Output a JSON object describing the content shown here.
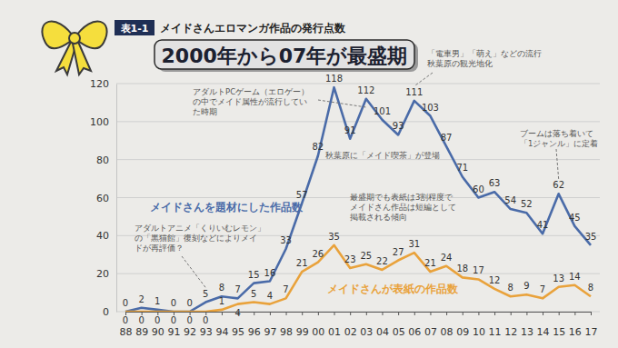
{
  "chart_data": {
    "type": "line",
    "figure_label": "表1-1",
    "title": "メイドさんエロマンガ作品の発行点数",
    "subtitle": "2000年から07年が最盛期",
    "categories": [
      "88",
      "89",
      "90",
      "91",
      "92",
      "93",
      "94",
      "95",
      "96",
      "97",
      "98",
      "99",
      "00",
      "01",
      "02",
      "03",
      "04",
      "05",
      "06",
      "07",
      "08",
      "09",
      "10",
      "11",
      "12",
      "13",
      "14",
      "15",
      "16",
      "17"
    ],
    "series": [
      {
        "name": "メイドさんを題材にした作品数",
        "color": "#4a6ba8",
        "values": [
          0,
          2,
          1,
          0,
          0,
          5,
          8,
          7,
          15,
          16,
          33,
          57,
          82,
          118,
          91,
          112,
          101,
          93,
          111,
          103,
          87,
          71,
          60,
          63,
          54,
          52,
          41,
          62,
          45,
          35
        ]
      },
      {
        "name": "メイドさんが表紙の作品数",
        "color": "#e9a23b",
        "values": [
          0,
          0,
          0,
          0,
          0,
          0,
          1,
          4,
          5,
          4,
          7,
          21,
          26,
          35,
          23,
          25,
          22,
          27,
          31,
          21,
          24,
          18,
          17,
          12,
          8,
          9,
          7,
          13,
          14,
          8
        ]
      }
    ],
    "ylim": [
      0,
      120
    ],
    "yticks": [
      0,
      20,
      40,
      60,
      80,
      100,
      120
    ],
    "grid": true,
    "data_labels": true,
    "annotations": [
      {
        "text": [
          "アダルトPCゲーム（エロゲー）",
          "の中でメイド属性が流行してい",
          "た時期"
        ]
      },
      {
        "text": [
          "秋葉原に「メイド喫茶」が登場"
        ]
      },
      {
        "text": [
          "「電車男」「萌え」などの流行",
          "秋葉原の観光地化"
        ]
      },
      {
        "text": [
          "最盛期でも表紙は3割程度で",
          "メイドさん作品は短編として",
          "掲載される傾向"
        ]
      },
      {
        "text": [
          "アダルトアニメ「くりいむレモン」",
          "の「黒猫館」復刻などによりメイ",
          "ドが再評価？"
        ]
      },
      {
        "text": [
          "ブームは落ち着いて",
          "「1ジャンル」に定着"
        ]
      }
    ]
  }
}
